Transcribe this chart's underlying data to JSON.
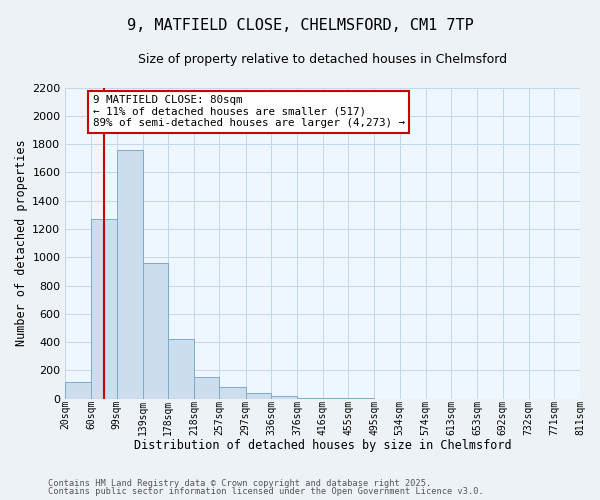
{
  "title_line1": "9, MATFIELD CLOSE, CHELMSFORD, CM1 7TP",
  "title_line2": "Size of property relative to detached houses in Chelmsford",
  "xlabel": "Distribution of detached houses by size in Chelmsford",
  "ylabel": "Number of detached properties",
  "bin_edges": [
    20,
    60,
    99,
    139,
    178,
    218,
    257,
    297,
    336,
    376,
    416,
    455,
    495,
    534,
    574,
    613,
    653,
    692,
    732,
    771,
    811
  ],
  "bar_heights": [
    120,
    1270,
    1760,
    960,
    420,
    155,
    80,
    40,
    20,
    5,
    2,
    2,
    1,
    1,
    0,
    0,
    0,
    0,
    0,
    0
  ],
  "bar_color": "#ccdded",
  "bar_edge_color": "#7aabcc",
  "grid_color": "#c5d8e8",
  "property_size": 80,
  "red_line_color": "#cc0000",
  "annotation_line1": "9 MATFIELD CLOSE: 80sqm",
  "annotation_line2": "← 11% of detached houses are smaller (517)",
  "annotation_line3": "89% of semi-detached houses are larger (4,273) →",
  "annotation_box_facecolor": "#ffffff",
  "annotation_box_edgecolor": "#cc0000",
  "ylim": [
    0,
    2200
  ],
  "yticks": [
    0,
    200,
    400,
    600,
    800,
    1000,
    1200,
    1400,
    1600,
    1800,
    2000,
    2200
  ],
  "bg_color": "#edf2f7",
  "plot_bg_color": "#eef7ff",
  "footnote1": "Contains HM Land Registry data © Crown copyright and database right 2025.",
  "footnote2": "Contains public sector information licensed under the Open Government Licence v3.0."
}
